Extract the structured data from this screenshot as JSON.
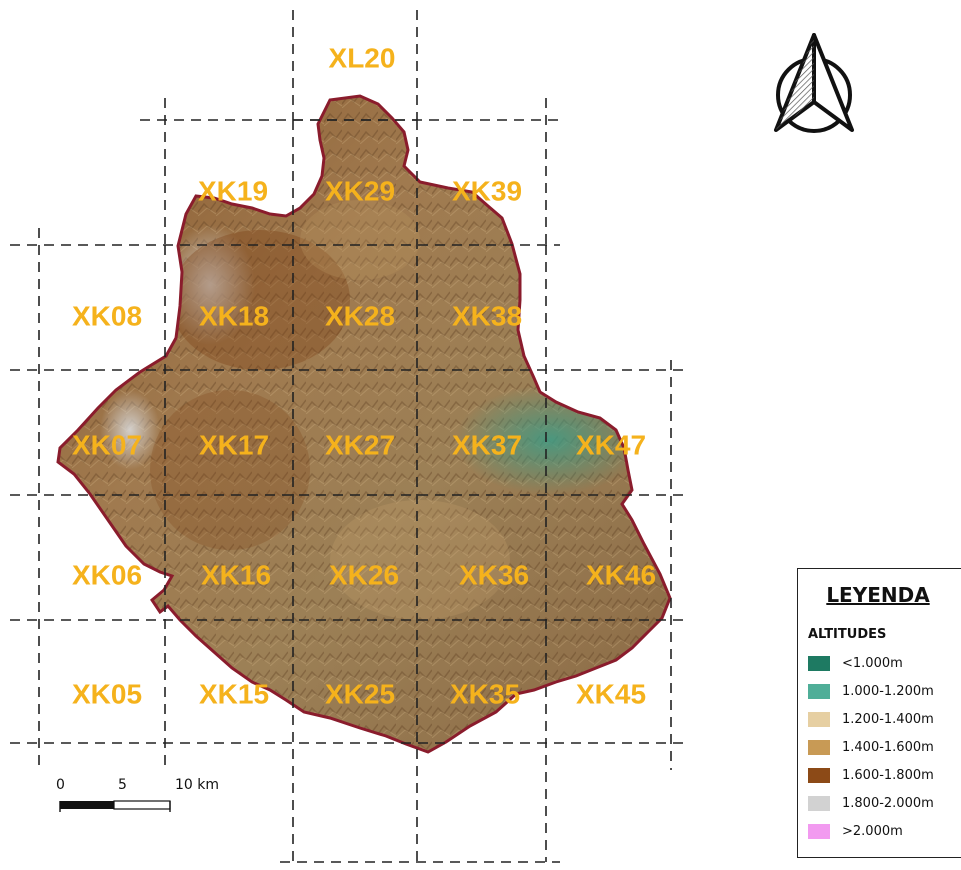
{
  "grid_labels": [
    {
      "id": "XL20"
    },
    {
      "id": "XK19"
    },
    {
      "id": "XK29"
    },
    {
      "id": "XK39"
    },
    {
      "id": "XK08"
    },
    {
      "id": "XK18"
    },
    {
      "id": "XK28"
    },
    {
      "id": "XK38"
    },
    {
      "id": "XK07"
    },
    {
      "id": "XK17"
    },
    {
      "id": "XK27"
    },
    {
      "id": "XK37"
    },
    {
      "id": "XK47"
    },
    {
      "id": "XK06"
    },
    {
      "id": "XK16"
    },
    {
      "id": "XK26"
    },
    {
      "id": "XK36"
    },
    {
      "id": "XK46"
    },
    {
      "id": "XK05"
    },
    {
      "id": "XK15"
    },
    {
      "id": "XK25"
    },
    {
      "id": "XK35"
    },
    {
      "id": "XK45"
    }
  ],
  "legend": {
    "title": "LEYENDA",
    "subtitle": "ALTITUDES",
    "items": [
      {
        "label": "<1.000m",
        "color": "#1e7a62"
      },
      {
        "label": "1.000-1.200m",
        "color": "#4fae98"
      },
      {
        "label": "1.200-1.400m",
        "color": "#e6cfa2"
      },
      {
        "label": "1.400-1.600m",
        "color": "#c89a55"
      },
      {
        "label": "1.600-1.800m",
        "color": "#8c4a17"
      },
      {
        "label": "1.800-2.000m",
        "color": "#d2d2d2"
      },
      {
        "label": ">2.000m",
        "color": "#f29af0"
      }
    ]
  },
  "scale_bar": {
    "labels": [
      "0",
      "5",
      "10 km"
    ]
  },
  "north_arrow": {
    "icon": "north-arrow-icon"
  },
  "colors": {
    "label": "#f5b21c",
    "boundary": "#8a1c2c",
    "terrain": "#9a7348"
  }
}
